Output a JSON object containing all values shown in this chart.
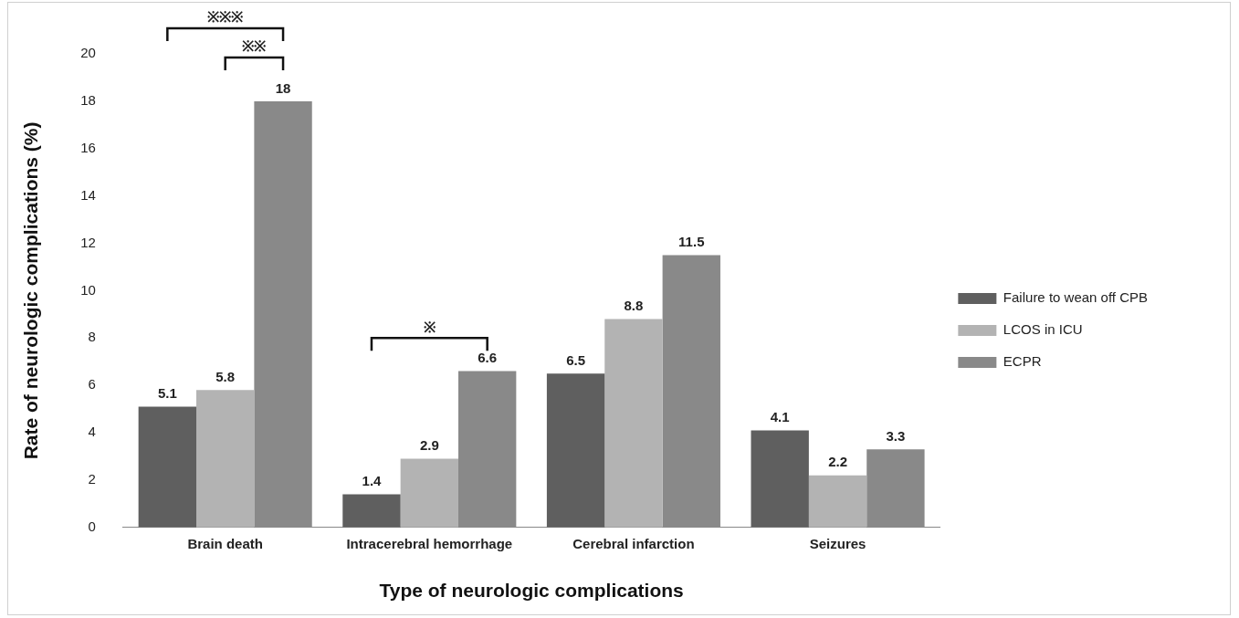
{
  "chart_data": {
    "type": "bar",
    "xlabel": "Type of neurologic complications",
    "ylabel": "Rate of neurologic complications (%)",
    "categories": [
      "Brain death",
      "Intracerebral hemorrhage",
      "Cerebral infarction",
      "Seizures"
    ],
    "series": [
      {
        "name": "Failure to wean off CPB",
        "color": "#5f5f5f",
        "values": [
          5.1,
          1.4,
          6.5,
          4.1
        ]
      },
      {
        "name": "LCOS in ICU",
        "color": "#b3b3b3",
        "values": [
          5.8,
          2.9,
          8.8,
          2.2
        ]
      },
      {
        "name": "ECPR",
        "color": "#898989",
        "values": [
          18,
          6.6,
          11.5,
          3.3
        ]
      }
    ],
    "ylim": [
      0,
      20
    ],
    "yticks": [
      0,
      2,
      4,
      6,
      8,
      10,
      12,
      14,
      16,
      18,
      20
    ],
    "grid": false,
    "legend": "right",
    "data_labels": true,
    "annotations": [
      "※※※",
      "※※",
      "※"
    ]
  }
}
